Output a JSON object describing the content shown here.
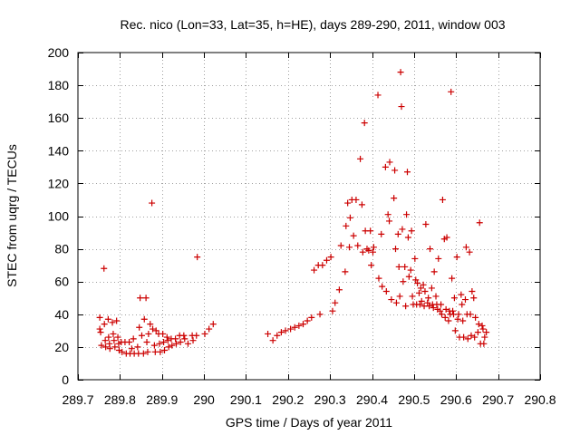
{
  "chart_data": {
    "type": "scatter",
    "title": "Rec. nico (Lon=33, Lat=35, h=HE), days 289-290, 2011, window 003",
    "xlabel": "GPS time / Days of year 2011",
    "ylabel": "STEC from uqrg / TECUs",
    "xlim": [
      289.7,
      290.8
    ],
    "ylim": [
      0,
      200
    ],
    "xticks": [
      289.7,
      289.8,
      289.9,
      290.0,
      290.1,
      290.2,
      290.3,
      290.4,
      290.5,
      290.6,
      290.7,
      290.8
    ],
    "xtick_labels": [
      "289.7",
      "289.8",
      "289.9",
      "290",
      "290.1",
      "290.2",
      "290.3",
      "290.4",
      "290.5",
      "290.6",
      "290.7",
      "290.8"
    ],
    "yticks": [
      0,
      20,
      40,
      60,
      80,
      100,
      120,
      140,
      160,
      180,
      200
    ],
    "ytick_labels": [
      "0",
      "20",
      "40",
      "60",
      "80",
      "100",
      "120",
      "140",
      "160",
      "180",
      "200"
    ],
    "grid": true,
    "marker": "+",
    "color": "#cc0000",
    "series": [
      {
        "points": [
          [
            289.752,
            38
          ],
          [
            289.752,
            31
          ],
          [
            289.754,
            29
          ],
          [
            289.756,
            21
          ],
          [
            289.762,
            68
          ],
          [
            289.763,
            34
          ],
          [
            289.765,
            24
          ],
          [
            289.766,
            20
          ],
          [
            289.772,
            37
          ],
          [
            289.773,
            26
          ],
          [
            289.775,
            22
          ],
          [
            289.776,
            19
          ],
          [
            289.782,
            35
          ],
          [
            289.784,
            28
          ],
          [
            289.786,
            24
          ],
          [
            289.788,
            20
          ],
          [
            289.792,
            36
          ],
          [
            289.795,
            26
          ],
          [
            289.797,
            22
          ],
          [
            289.798,
            18
          ],
          [
            289.803,
            23
          ],
          [
            289.805,
            17
          ],
          [
            289.812,
            23
          ],
          [
            289.815,
            16
          ],
          [
            289.822,
            23
          ],
          [
            289.824,
            16
          ],
          [
            289.828,
            19
          ],
          [
            289.832,
            25
          ],
          [
            289.834,
            16
          ],
          [
            289.842,
            20
          ],
          [
            289.844,
            16
          ],
          [
            289.846,
            32
          ],
          [
            289.848,
            50
          ],
          [
            289.852,
            27
          ],
          [
            289.856,
            16
          ],
          [
            289.858,
            37
          ],
          [
            289.862,
            50
          ],
          [
            289.864,
            23
          ],
          [
            289.866,
            17
          ],
          [
            289.868,
            28
          ],
          [
            289.872,
            34
          ],
          [
            289.876,
            108
          ],
          [
            289.878,
            31
          ],
          [
            289.882,
            21
          ],
          [
            289.884,
            17
          ],
          [
            289.886,
            30
          ],
          [
            289.892,
            28
          ],
          [
            289.894,
            22
          ],
          [
            289.896,
            17
          ],
          [
            289.902,
            28
          ],
          [
            289.904,
            23
          ],
          [
            289.906,
            18
          ],
          [
            289.912,
            26
          ],
          [
            289.914,
            24
          ],
          [
            289.916,
            20
          ],
          [
            289.922,
            25
          ],
          [
            289.924,
            21
          ],
          [
            289.932,
            25
          ],
          [
            289.934,
            22
          ],
          [
            289.942,
            27
          ],
          [
            289.944,
            23
          ],
          [
            289.952,
            27
          ],
          [
            289.954,
            25
          ],
          [
            289.962,
            22
          ],
          [
            289.972,
            27
          ],
          [
            289.974,
            24
          ],
          [
            289.982,
            27
          ],
          [
            289.984,
            75
          ],
          [
            290.002,
            28
          ],
          [
            290.012,
            31
          ],
          [
            290.022,
            34
          ],
          [
            290.152,
            28
          ],
          [
            290.164,
            24
          ],
          [
            290.174,
            27
          ],
          [
            290.184,
            29
          ],
          [
            290.194,
            30
          ],
          [
            290.206,
            31
          ],
          [
            290.216,
            32
          ],
          [
            290.226,
            33
          ],
          [
            290.236,
            34
          ],
          [
            290.246,
            36
          ],
          [
            290.256,
            38
          ],
          [
            290.262,
            67
          ],
          [
            290.272,
            70
          ],
          [
            290.276,
            40
          ],
          [
            290.282,
            70
          ],
          [
            290.292,
            73
          ],
          [
            290.302,
            75
          ],
          [
            290.306,
            42
          ],
          [
            290.312,
            47
          ],
          [
            290.322,
            55
          ],
          [
            290.326,
            82
          ],
          [
            290.336,
            66
          ],
          [
            290.338,
            94
          ],
          [
            290.342,
            108
          ],
          [
            290.346,
            81
          ],
          [
            290.348,
            99
          ],
          [
            290.352,
            110
          ],
          [
            290.356,
            88
          ],
          [
            290.362,
            110
          ],
          [
            290.366,
            82
          ],
          [
            290.372,
            135
          ],
          [
            290.376,
            107
          ],
          [
            290.378,
            78
          ],
          [
            290.382,
            157
          ],
          [
            290.384,
            91
          ],
          [
            290.388,
            80
          ],
          [
            290.392,
            79
          ],
          [
            290.396,
            91
          ],
          [
            290.398,
            70
          ],
          [
            290.402,
            78
          ],
          [
            290.404,
            81
          ],
          [
            290.414,
            174
          ],
          [
            290.416,
            62
          ],
          [
            290.422,
            89
          ],
          [
            290.424,
            57
          ],
          [
            290.432,
            130
          ],
          [
            290.434,
            54
          ],
          [
            290.438,
            101
          ],
          [
            290.441,
            97
          ],
          [
            290.442,
            133
          ],
          [
            290.446,
            49
          ],
          [
            290.452,
            111
          ],
          [
            290.454,
            128
          ],
          [
            290.456,
            80
          ],
          [
            290.458,
            47
          ],
          [
            290.462,
            89
          ],
          [
            290.464,
            69
          ],
          [
            290.466,
            51
          ],
          [
            290.468,
            188
          ],
          [
            290.47,
            167
          ],
          [
            290.472,
            92
          ],
          [
            290.474,
            60
          ],
          [
            290.478,
            69
          ],
          [
            290.48,
            45
          ],
          [
            290.482,
            101
          ],
          [
            290.484,
            127
          ],
          [
            290.486,
            87
          ],
          [
            290.488,
            63
          ],
          [
            290.492,
            67
          ],
          [
            290.494,
            91
          ],
          [
            290.496,
            51
          ],
          [
            290.498,
            46
          ],
          [
            290.502,
            74
          ],
          [
            290.504,
            61
          ],
          [
            290.506,
            46
          ],
          [
            290.508,
            59
          ],
          [
            290.512,
            53
          ],
          [
            290.514,
            46
          ],
          [
            290.516,
            56
          ],
          [
            290.518,
            48
          ],
          [
            290.522,
            58
          ],
          [
            290.524,
            45
          ],
          [
            290.526,
            54
          ],
          [
            290.528,
            95
          ],
          [
            290.532,
            47
          ],
          [
            290.534,
            50
          ],
          [
            290.536,
            45
          ],
          [
            290.538,
            80
          ],
          [
            290.542,
            56
          ],
          [
            290.544,
            46
          ],
          [
            290.546,
            44
          ],
          [
            290.548,
            66
          ],
          [
            290.552,
            51
          ],
          [
            290.554,
            46
          ],
          [
            290.556,
            43
          ],
          [
            290.558,
            74
          ],
          [
            290.562,
            42
          ],
          [
            290.564,
            46
          ],
          [
            290.566,
            40
          ],
          [
            290.568,
            110
          ],
          [
            290.572,
            86
          ],
          [
            290.574,
            38
          ],
          [
            290.576,
            43
          ],
          [
            290.578,
            87
          ],
          [
            290.582,
            36
          ],
          [
            290.584,
            42
          ],
          [
            290.586,
            40
          ],
          [
            290.588,
            176
          ],
          [
            290.59,
            62
          ],
          [
            290.592,
            42
          ],
          [
            290.594,
            40
          ],
          [
            290.596,
            50
          ],
          [
            290.598,
            30
          ],
          [
            290.602,
            75
          ],
          [
            290.604,
            37
          ],
          [
            290.606,
            40
          ],
          [
            290.608,
            26
          ],
          [
            290.612,
            52
          ],
          [
            290.614,
            46
          ],
          [
            290.616,
            36
          ],
          [
            290.618,
            26
          ],
          [
            290.622,
            49
          ],
          [
            290.624,
            81
          ],
          [
            290.626,
            40
          ],
          [
            290.628,
            25
          ],
          [
            290.632,
            78
          ],
          [
            290.634,
            40
          ],
          [
            290.636,
            27
          ],
          [
            290.638,
            54
          ],
          [
            290.642,
            50
          ],
          [
            290.644,
            26
          ],
          [
            290.646,
            38
          ],
          [
            290.652,
            29
          ],
          [
            290.654,
            34
          ],
          [
            290.656,
            96
          ],
          [
            290.658,
            22
          ],
          [
            290.662,
            33
          ],
          [
            290.664,
            31
          ],
          [
            290.666,
            22
          ],
          [
            290.668,
            26
          ],
          [
            290.672,
            29
          ]
        ]
      }
    ]
  }
}
